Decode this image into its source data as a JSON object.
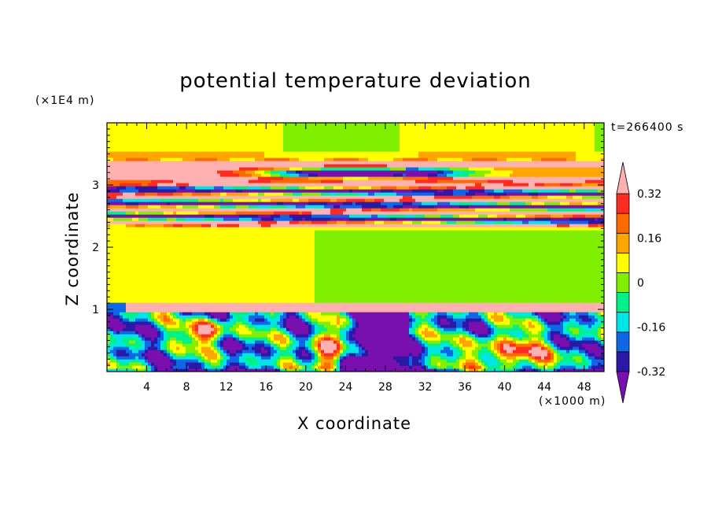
{
  "chart_data": {
    "type": "heatmap",
    "title": "potential temperature deviation",
    "xlabel": "X coordinate",
    "ylabel": "Z coordinate",
    "x_unit": "(×1000 m)",
    "y_unit": "(×1E4 m)",
    "time_label": "t=266400 s",
    "xlim": [
      0,
      50
    ],
    "ylim": [
      0,
      4
    ],
    "x_ticks": [
      4,
      8,
      12,
      16,
      20,
      24,
      28,
      32,
      36,
      40,
      44,
      48
    ],
    "y_ticks": [
      1,
      2,
      3
    ],
    "colorbar": {
      "levels": [
        -0.4,
        -0.32,
        -0.24,
        -0.16,
        -0.08,
        0,
        0.08,
        0.16,
        0.24,
        0.32,
        0.4
      ],
      "labels": [
        "0.32",
        "0.16",
        "0",
        "-0.16",
        "-0.32"
      ],
      "label_values": [
        0.32,
        0.16,
        0,
        -0.16,
        -0.32
      ],
      "colors": [
        "#7a0fb0",
        "#2a18a6",
        "#0f66e6",
        "#00e6e6",
        "#00f08c",
        "#80f000",
        "#ffff00",
        "#ffa500",
        "#ff6a00",
        "#ff2a20",
        "#ffb0b0"
      ],
      "extend": "both"
    },
    "regions": [
      {
        "value": 0.02,
        "desc": "upper background",
        "z": [
          3.5,
          4.0
        ]
      },
      {
        "value": 0.45,
        "desc": "pink band",
        "z": [
          3.05,
          3.35
        ]
      },
      {
        "value": -0.42,
        "desc": "violet core",
        "z": [
          3.1,
          3.3
        ]
      },
      {
        "value": 0.45,
        "desc": "pink stripe",
        "z": [
          2.7,
          2.85
        ]
      },
      {
        "value": -0.42,
        "desc": "violet stripe",
        "z": [
          2.45,
          2.6
        ]
      },
      {
        "value": 0.02,
        "desc": "mid layer",
        "z": [
          1.1,
          2.35
        ]
      },
      {
        "value": 0.45,
        "desc": "inversion pink",
        "z": [
          1.0,
          1.1
        ]
      },
      {
        "value": -0.2,
        "desc": "turbulent boundary layer",
        "z": [
          0,
          1.0
        ]
      },
      {
        "value": -0.42,
        "desc": "plume x=24-31",
        "z": [
          0,
          0.95
        ]
      },
      {
        "value": 0.2,
        "desc": "eddy x=40",
        "z": [
          0.05,
          0.6
        ]
      }
    ]
  }
}
